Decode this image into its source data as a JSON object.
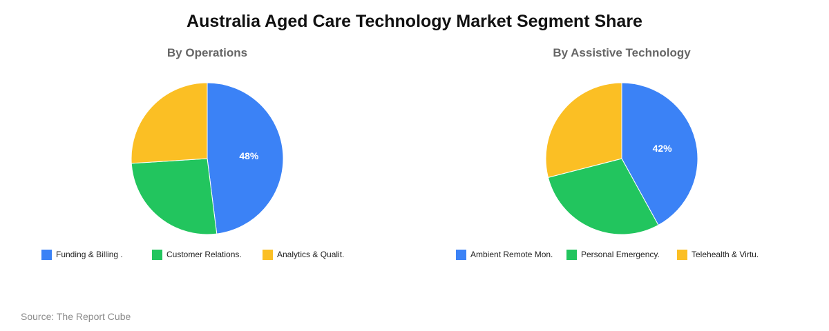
{
  "title": "Australia Aged Care Technology Market Segment Share",
  "source": "Source: The Report Cube",
  "colors": {
    "blue": "#3b82f6",
    "green": "#22c55e",
    "yellow": "#fbbf24"
  },
  "chart_data": [
    {
      "type": "pie",
      "title": "By Operations",
      "labels": [
        "Funding & Billing .",
        "Customer Relations.",
        "Analytics & Qualit."
      ],
      "values": [
        48,
        26,
        26
      ],
      "colors": [
        "#3b82f6",
        "#22c55e",
        "#fbbf24"
      ],
      "data_labels": [
        "48%",
        "",
        ""
      ],
      "start_angle": 0,
      "direction": "clockwise",
      "legend_position": "bottom"
    },
    {
      "type": "pie",
      "title": "By Assistive Technology",
      "labels": [
        "Ambient Remote Mon.",
        "Personal Emergency.",
        "Telehealth & Virtu."
      ],
      "values": [
        42,
        29,
        29
      ],
      "colors": [
        "#3b82f6",
        "#22c55e",
        "#fbbf24"
      ],
      "data_labels": [
        "42%",
        "",
        ""
      ],
      "start_angle": 0,
      "direction": "clockwise",
      "legend_position": "bottom"
    }
  ]
}
